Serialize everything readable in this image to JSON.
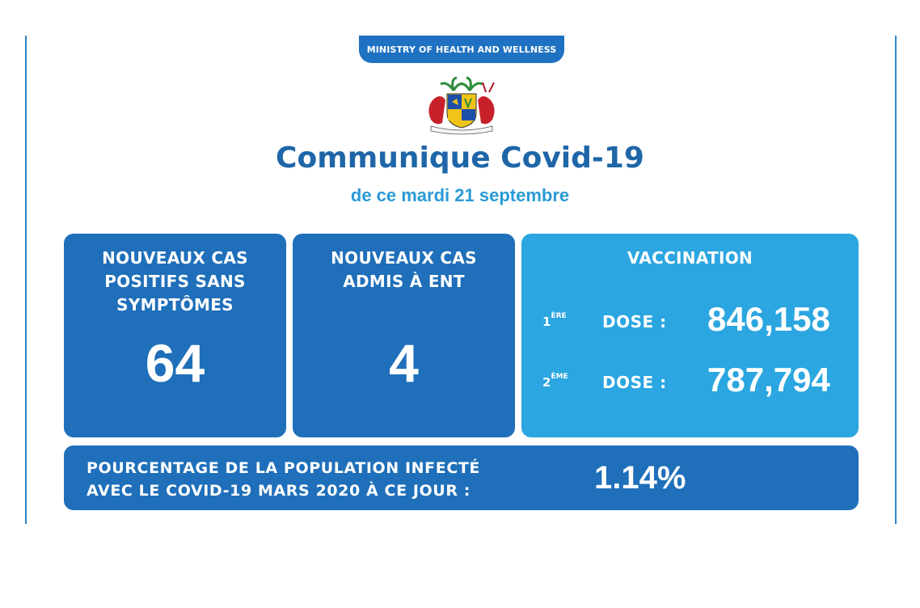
{
  "header": {
    "ministry": "MINISTRY OF HEALTH AND WELLNESS",
    "title": "Communique Covid-19",
    "date": "de ce mardi 21 septembre"
  },
  "cards": {
    "asymptomatic": {
      "heading": "NOUVEAUX CAS\nPOSITIFS SANS\nSYMPTÔMES",
      "value": "64"
    },
    "ent": {
      "heading": "NOUVEAUX CAS\nADMIS À ENT",
      "value": "4"
    },
    "vaccination": {
      "heading": "VACCINATION",
      "doses": [
        {
          "ordinal": "1",
          "ordinal_sup": "ÈRE",
          "label": "DOSE :",
          "value": "846,158"
        },
        {
          "ordinal": "2",
          "ordinal_sup": "ÈME",
          "label": "DOSE :",
          "value": "787,794"
        }
      ]
    }
  },
  "infected": {
    "label": "POURCENTAGE DE LA POPULATION INFECTÉ\nAVEC LE COVID-19 MARS 2020 À CE JOUR :",
    "value": "1.14%"
  },
  "colors": {
    "dark_blue": "#1f6fba",
    "light_blue": "#2ba6e0",
    "title_blue": "#1e66a8"
  },
  "icons": {
    "emblem": "coat-of-arms-of-mauritius"
  }
}
